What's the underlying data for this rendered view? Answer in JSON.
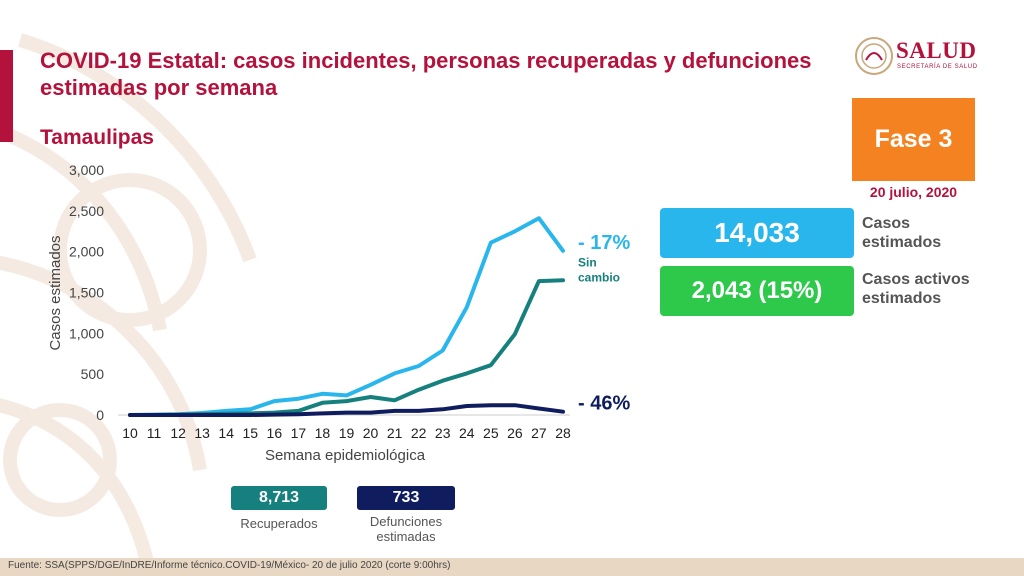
{
  "header": {
    "title": "COVID-19 Estatal: casos incidentes, personas recuperadas y defunciones estimadas por semana",
    "state": "Tamaulipas"
  },
  "logo": {
    "name": "SALUD",
    "subtitle": "SECRETARÍA DE SALUD"
  },
  "phase": {
    "label": "Fase 3",
    "date": "20 julio, 2020"
  },
  "stats": {
    "cases_value": "14,033",
    "cases_label": "Casos estimados",
    "active_value": "2,043 (15%)",
    "active_label": "Casos activos estimados"
  },
  "totals": {
    "recovered_value": "8,713",
    "recovered_label": "Recuperados",
    "deaths_value": "733",
    "deaths_label": "Defunciones estimadas"
  },
  "colors": {
    "brand": "#b3123d",
    "cases": "#29b6ec",
    "recovered": "#15807d",
    "deaths": "#0f1d5e",
    "active": "#2ec84a",
    "phase": "#f58220"
  },
  "chart_data": {
    "type": "line",
    "xlabel": "Semana epidemiológica",
    "ylabel": "Casos estimados",
    "ylim": [
      0,
      3000
    ],
    "yticks": [
      "0",
      "500",
      "1,000",
      "1,500",
      "2,000",
      "2,500",
      "3,000"
    ],
    "x": [
      10,
      11,
      12,
      13,
      14,
      15,
      16,
      17,
      18,
      19,
      20,
      21,
      22,
      23,
      24,
      25,
      26,
      27,
      28
    ],
    "grid": false,
    "series": [
      {
        "key": "cases",
        "color": "#29b6ec",
        "values": [
          0,
          5,
          10,
          25,
          50,
          70,
          170,
          200,
          260,
          240,
          370,
          510,
          600,
          790,
          1320,
          2110,
          2250,
          2410,
          2010
        ],
        "end_label": "- 17%"
      },
      {
        "key": "recovered",
        "color": "#15807d",
        "values": [
          0,
          0,
          5,
          10,
          15,
          20,
          30,
          50,
          150,
          170,
          220,
          180,
          310,
          420,
          510,
          610,
          990,
          1640,
          1650
        ],
        "end_label": "Sin cambio"
      },
      {
        "key": "deaths",
        "color": "#0f1d5e",
        "values": [
          0,
          0,
          0,
          0,
          0,
          0,
          5,
          10,
          20,
          30,
          30,
          50,
          50,
          70,
          110,
          120,
          120,
          80,
          40
        ],
        "end_label": "- 46%"
      }
    ]
  },
  "footer": {
    "source": "Fuente: SSA(SPPS/DGE/InDRE/Informe técnico.COVID-19/México- 20 de julio 2020 (corte 9:00hrs)"
  }
}
